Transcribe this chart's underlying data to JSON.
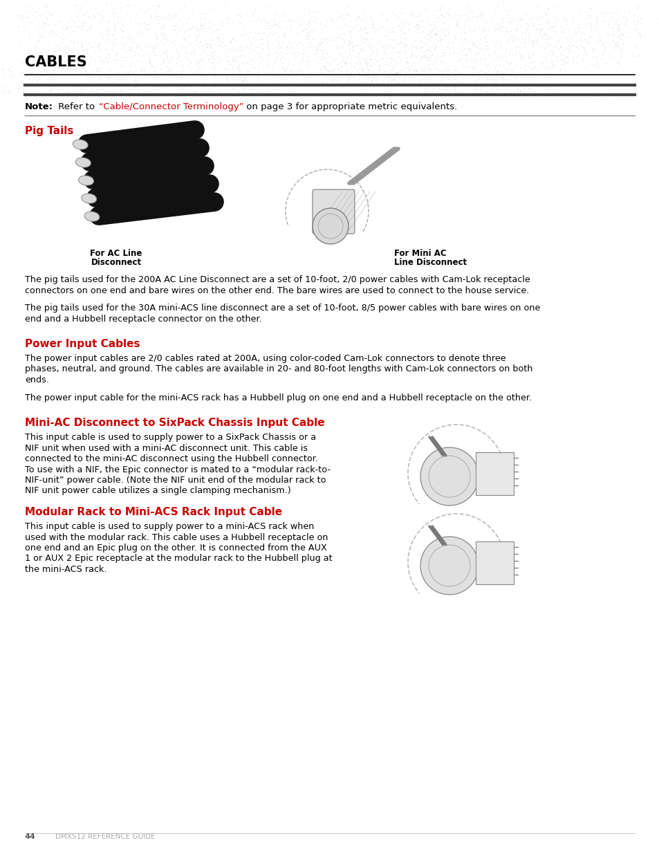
{
  "page_bg": "#ffffff",
  "title": "CABLES",
  "title_color": "#000000",
  "title_fontsize": 15,
  "note_link_color": "#cc0000",
  "section1_title": "Pig Tails",
  "section_color": "#cc0000",
  "section_fontsize": 11,
  "para1": "The pig tails used for the 200A AC Line Disconnect are a set of 10-foot, 2/0 power cables with Cam-Lok receptacle\nconnectors on one end and bare wires on the other end. The bare wires are used to connect to the house service.",
  "para2": "The pig tails used for the 30A mini-ACS line disconnect are a set of 10-foot, 8/5 power cables with bare wires on one\nend and a Hubbell receptacle connector on the other.",
  "section2_title": "Power Input Cables",
  "para3": "The power input cables are 2/0 cables rated at 200A, using color-coded Cam-Lok connectors to denote three\nphases, neutral, and ground. The cables are available in 20- and 80-foot lengths with Cam-Lok connectors on both\nends.",
  "para4": "The power input cable for the mini-ACS rack has a Hubbell plug on one end and a Hubbell receptacle on the other.",
  "section3_title": "Mini-AC Disconnect to SixPack Chassis Input Cable",
  "para5_lines": [
    "This input cable is used to supply power to a SixPack Chassis or a",
    "NIF unit when used with a mini-AC disconnect unit. This cable is",
    "connected to the mini-AC disconnect using the Hubbell connector.",
    "To use with a NIF, the Epic connector is mated to a “modular rack-to-",
    "NIF-unit” power cable. (Note the NIF unit end of the modular rack to",
    "NIF unit power cable utilizes a single clamping mechanism.)"
  ],
  "section4_title": "Modular Rack to Mini-ACS Rack Input Cable",
  "para6_lines": [
    "This input cable is used to supply power to a mini-ACS rack when",
    "used with the modular rack. This cable uses a Hubbell receptacle on",
    "one end and an Epic plug on the other. It is connected from the AUX",
    "1 or AUX 2 Epic receptacle at the modular rack to the Hubbell plug at",
    "the mini-ACS rack."
  ],
  "footer_page": "44",
  "footer_text": "DMX512 REFERENCE GUIDE",
  "label_ac_line1": "For AC Line",
  "label_ac_line2": "Disconnect",
  "label_mini_ac1": "For Mini AC",
  "label_mini_ac2": "Line Disconnect",
  "body_fontsize": 9.2
}
